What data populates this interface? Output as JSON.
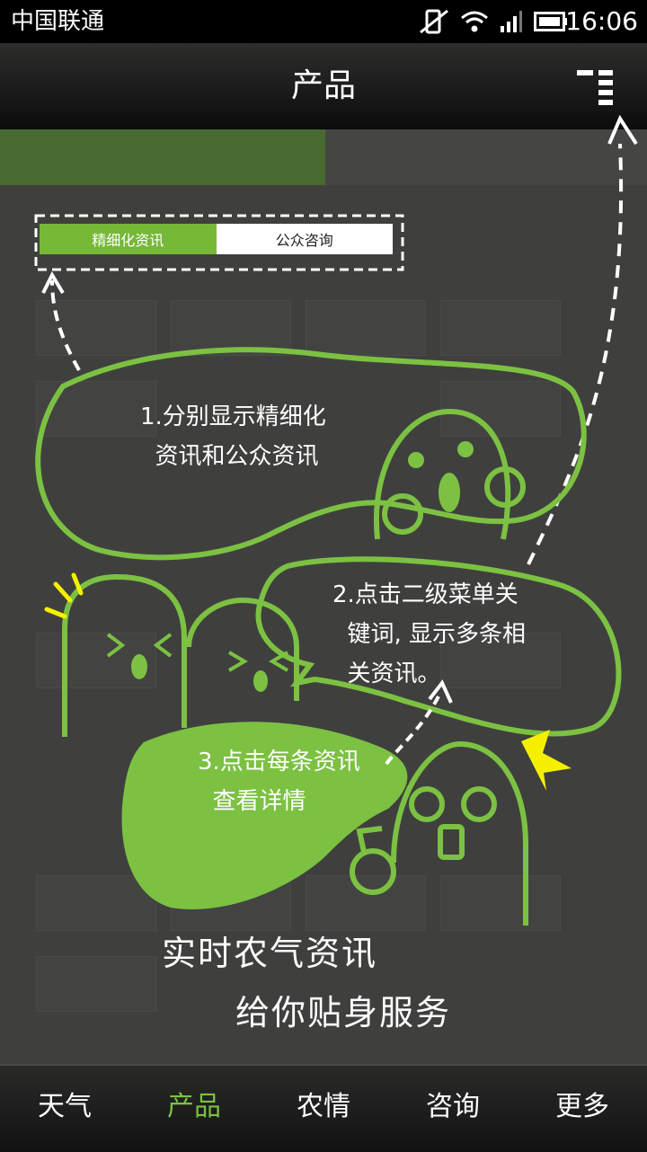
{
  "status_bar": {
    "carrier": "中国联通",
    "time": "16:06"
  },
  "title_bar": {
    "title": "产品"
  },
  "tabs": {
    "active": "精细化资讯",
    "inactive": "公众咨询"
  },
  "notes": {
    "note1": "1.分别显示精细化\n  资讯和公众资讯",
    "note2": "2.点击二级菜单关\n  键词, 显示多条相\n  关资讯。",
    "note3": "3.点击每条资讯\n  查看详情"
  },
  "slogan": {
    "line1": "实时农气资讯",
    "line2": "给你贴身服务"
  },
  "bottom_nav": {
    "items": [
      "天气",
      "产品",
      "农情",
      "咨询",
      "更多"
    ],
    "active_index": 1
  },
  "colors": {
    "accent": "#7cc142",
    "tab_active": "#76b838",
    "highlight": "#f4f000"
  }
}
